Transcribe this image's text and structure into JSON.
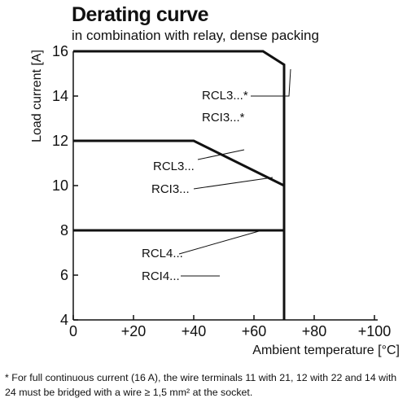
{
  "header": {
    "title": "Derating curve",
    "subtitle": "in combination with relay, dense packing"
  },
  "chart_data": {
    "type": "line",
    "title": "Derating curve",
    "subtitle": "in combination with relay, dense packing",
    "xlabel": "Ambient temperature [°C]",
    "ylabel": "Load current [A]",
    "xlim": [
      0,
      100
    ],
    "ylim": [
      4,
      16
    ],
    "xticks": [
      0,
      20,
      40,
      60,
      80,
      100
    ],
    "xtick_labels": [
      "0",
      "+20",
      "+40",
      "+60",
      "+80",
      "+100"
    ],
    "yticks": [
      4,
      6,
      8,
      10,
      12,
      14,
      16
    ],
    "ytick_labels": [
      "4",
      "6",
      "8",
      "10",
      "12",
      "14",
      "16"
    ],
    "grid": false,
    "series": [
      {
        "x": [
          0,
          63,
          70,
          70
        ],
        "y": [
          16,
          16,
          15.4,
          4
        ]
      },
      {
        "x": [
          0,
          40,
          70
        ],
        "y": [
          12,
          12,
          10
        ]
      },
      {
        "x": [
          0,
          70
        ],
        "y": [
          8,
          8
        ]
      }
    ],
    "annotations": [
      {
        "lines": [
          "RCL3...*",
          "RCI3...*"
        ]
      },
      {
        "lines": [
          "RCL3...",
          "RCI3..."
        ]
      },
      {
        "lines": [
          "RCL4...",
          "RCI4..."
        ]
      }
    ]
  },
  "footnote": "* For full continuous current (16 A), the wire terminals 11 with 21, 12 with 22 and 14 with 24 must be bridged with a wire ≥ 1,5 mm² at the socket."
}
